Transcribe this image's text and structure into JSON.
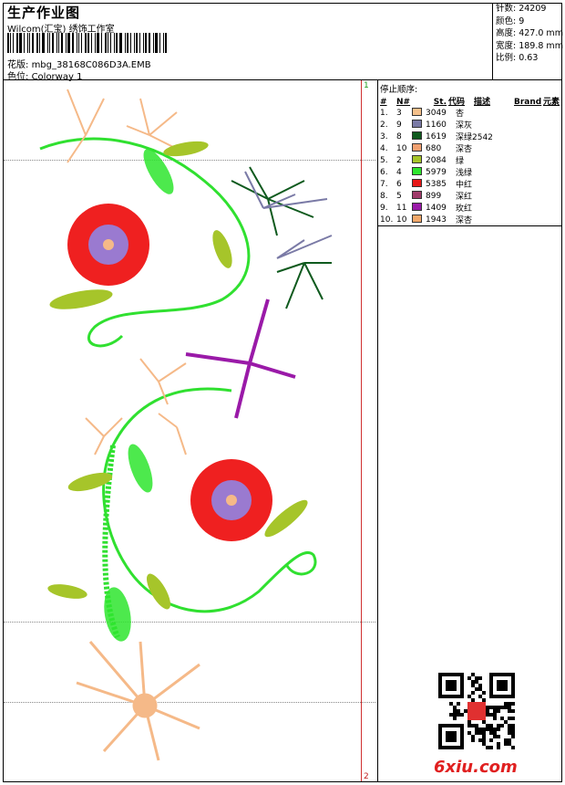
{
  "header": {
    "title": "生产作业图",
    "company": "Wilcom(汇宝) 绣饰工作室",
    "file_label": "花版:",
    "file_name": "mbg_38168C086D3A.EMB",
    "colorway_label": "色位:",
    "colorway_name": "Colorway 1"
  },
  "stats": {
    "stitches": "针数: 24209",
    "colors": "颜色: 9",
    "height": "高度: 427.0 mm",
    "width": "宽度: 189.8 mm",
    "scale": "比例: 0.63"
  },
  "markers": {
    "top": "1",
    "bottom": "2"
  },
  "stop_sequence": {
    "title": "停止顺序:",
    "columns": [
      "#",
      "N#",
      "St.",
      "代码",
      "描述",
      "Brand",
      "元素"
    ],
    "rows": [
      {
        "idx": "1.",
        "n": "3",
        "color": "#f5c08a",
        "code": "3049",
        "desc": "杏"
      },
      {
        "idx": "2.",
        "n": "9",
        "color": "#7a7aa6",
        "code": "1160",
        "desc": "深灰"
      },
      {
        "idx": "3.",
        "n": "8",
        "color": "#0f5a1e",
        "code": "1619",
        "desc": "深绿2542"
      },
      {
        "idx": "4.",
        "n": "10",
        "color": "#f0a070",
        "code": "680",
        "desc": "深杏"
      },
      {
        "idx": "5.",
        "n": "2",
        "color": "#a6c52a",
        "code": "2084",
        "desc": "绿"
      },
      {
        "idx": "6.",
        "n": "4",
        "color": "#2ee62e",
        "code": "5979",
        "desc": "浅绿"
      },
      {
        "idx": "7.",
        "n": "6",
        "color": "#e81818",
        "code": "5385",
        "desc": "中红"
      },
      {
        "idx": "8.",
        "n": "5",
        "color": "#a03a6a",
        "code": "899",
        "desc": "深红"
      },
      {
        "idx": "9.",
        "n": "11",
        "color": "#9a1aa8",
        "code": "1409",
        "desc": "玫红"
      },
      {
        "idx": "10.",
        "n": "10",
        "color": "#f2a86a",
        "code": "1943",
        "desc": "深杏"
      }
    ]
  },
  "watermark": {
    "text": "6xiu.com"
  }
}
